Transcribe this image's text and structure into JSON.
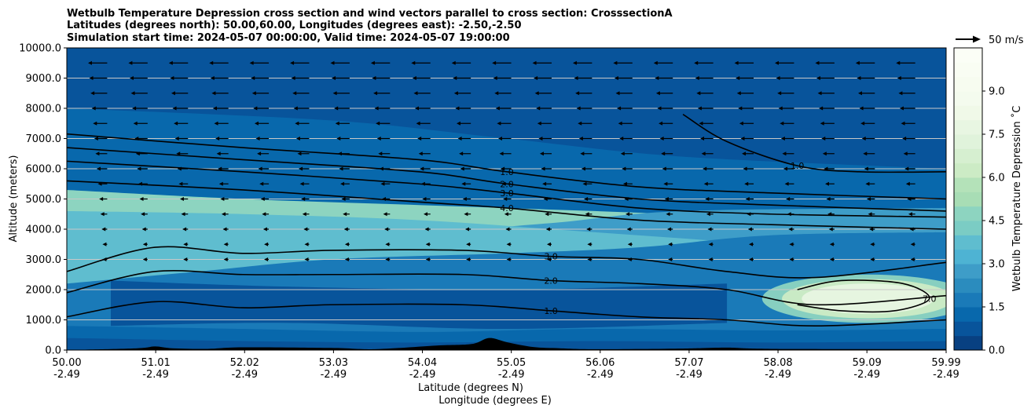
{
  "chart_data": {
    "type": "contourf",
    "title_lines": [
      "Wetbulb Temperature Depression cross section and wind vectors parallel to cross section: CrosssectionA",
      "Latitudes (degrees north): 50.00,60.00, Longitudes (degrees east): -2.50,-2.50",
      "Simulation start time: 2024-05-07 00:00:00, Valid time: 2024-05-07 19:00:00"
    ],
    "ylabel": "Altitude (meters)",
    "xlabel_lat": "Latitude (degrees N)",
    "xlabel_lon": "Longitude (degrees E)",
    "ylim": [
      0,
      10000
    ],
    "y_ticks": [
      {
        "value": 0,
        "label": "0.0"
      },
      {
        "value": 1000,
        "label": "1000.0"
      },
      {
        "value": 2000,
        "label": "2000.0"
      },
      {
        "value": 3000,
        "label": "3000.0"
      },
      {
        "value": 4000,
        "label": "4000.0"
      },
      {
        "value": 5000,
        "label": "5000.0"
      },
      {
        "value": 6000,
        "label": "6000.0"
      },
      {
        "value": 7000,
        "label": "7000.0"
      },
      {
        "value": 8000,
        "label": "8000.0"
      },
      {
        "value": 9000,
        "label": "9000.0"
      },
      {
        "value": 10000,
        "label": "10000.0"
      }
    ],
    "xlim": [
      50.0,
      59.99
    ],
    "x_ticks": [
      {
        "value": 50.0,
        "lat": "50.00",
        "lon": "-2.49"
      },
      {
        "value": 51.01,
        "lat": "51.01",
        "lon": "-2.49"
      },
      {
        "value": 52.02,
        "lat": "52.02",
        "lon": "-2.49"
      },
      {
        "value": 53.03,
        "lat": "53.03",
        "lon": "-2.49"
      },
      {
        "value": 54.04,
        "lat": "54.04",
        "lon": "-2.49"
      },
      {
        "value": 55.05,
        "lat": "55.05",
        "lon": "-2.49"
      },
      {
        "value": 56.06,
        "lat": "56.06",
        "lon": "-2.49"
      },
      {
        "value": 57.07,
        "lat": "57.07",
        "lon": "-2.49"
      },
      {
        "value": 58.08,
        "lat": "58.08",
        "lon": "-2.49"
      },
      {
        "value": 59.09,
        "lat": "59.09",
        "lon": "-2.49"
      },
      {
        "value": 59.99,
        "lat": "59.99",
        "lon": "-2.49"
      }
    ],
    "colorbar": {
      "label": "Wetbulb Temperature Depression ˚C",
      "range": [
        0,
        10.5
      ],
      "levels": [
        0,
        0.5,
        1.0,
        1.5,
        2.0,
        2.5,
        3.0,
        3.5,
        4.0,
        4.5,
        5.0,
        5.5,
        6.0,
        6.5,
        7.0,
        7.5,
        8.0,
        8.5,
        9.0,
        9.5,
        10.0,
        10.5
      ],
      "ticks": [
        {
          "value": 0.0,
          "label": "0.0"
        },
        {
          "value": 1.5,
          "label": "1.5"
        },
        {
          "value": 3.0,
          "label": "3.0"
        },
        {
          "value": 4.5,
          "label": "4.5"
        },
        {
          "value": 6.0,
          "label": "6.0"
        },
        {
          "value": 7.5,
          "label": "7.5"
        },
        {
          "value": 9.0,
          "label": "9.0"
        }
      ],
      "colors": [
        "#084081",
        "#08549b",
        "#0868ac",
        "#1a7ab8",
        "#2b8cbe",
        "#3e9dc8",
        "#4eb3d3",
        "#5fbdcf",
        "#7bccc4",
        "#8dd4c0",
        "#a8ddb5",
        "#b4e2b9",
        "#ccebc5",
        "#d6efd0",
        "#e0f3db",
        "#e8f6e2",
        "#f0f9e8",
        "#f4fbee",
        "#f7fcf0",
        "#f9fdf3",
        "#fbfef6"
      ]
    },
    "wind_reference": {
      "value": 50,
      "label": "50 m/s"
    },
    "bands": [
      {
        "level": 0.5,
        "heights": [
          [
            50.0,
            400
          ],
          [
            52.0,
            300
          ],
          [
            54.0,
            250
          ],
          [
            56.0,
            300
          ],
          [
            58.0,
            250
          ],
          [
            59.99,
            300
          ]
        ]
      },
      {
        "level": 1.0,
        "heights": [
          [
            50.0,
            800
          ],
          [
            52.0,
            700
          ],
          [
            54.0,
            600
          ],
          [
            56.0,
            700
          ],
          [
            58.0,
            650
          ],
          [
            59.99,
            700
          ]
        ]
      },
      {
        "level": 1.5,
        "heights": [
          [
            50.0,
            2200
          ],
          [
            51.5,
            2600
          ],
          [
            53.0,
            3000
          ],
          [
            55.0,
            3200
          ],
          [
            56.5,
            3400
          ],
          [
            58.0,
            3800
          ],
          [
            59.99,
            3900
          ]
        ]
      },
      {
        "level": 2.5,
        "heights": [
          [
            50.0,
            3200
          ],
          [
            52.0,
            3700
          ],
          [
            54.0,
            3900
          ],
          [
            55.5,
            4200
          ],
          [
            57.0,
            4600
          ],
          [
            59.99,
            4700
          ]
        ]
      },
      {
        "level": 3.5,
        "heights": [
          [
            50.0,
            4600
          ],
          [
            52.0,
            4500
          ],
          [
            54.0,
            4300
          ],
          [
            56.0,
            3900
          ],
          [
            58.0,
            3500
          ],
          [
            59.99,
            3200
          ]
        ]
      },
      {
        "level": 4.5,
        "heights": [
          [
            50.0,
            5300
          ],
          [
            52.0,
            5000
          ],
          [
            54.0,
            4800
          ],
          [
            56.0,
            4600
          ],
          [
            58.0,
            4400
          ],
          [
            59.99,
            4300
          ]
        ]
      },
      {
        "level": 1.0,
        "heights": [
          [
            50.0,
            8000
          ],
          [
            53.0,
            7600
          ],
          [
            55.0,
            7000
          ],
          [
            57.0,
            6400
          ],
          [
            59.99,
            6000
          ]
        ]
      },
      {
        "level": 0.5,
        "heights": [
          [
            50.0,
            10000
          ],
          [
            59.99,
            10000
          ]
        ]
      }
    ],
    "moist_layer": {
      "level": 0.5,
      "lower": [
        [
          50.5,
          800
        ],
        [
          52.5,
          900
        ],
        [
          55.0,
          700
        ],
        [
          57.5,
          900
        ]
      ],
      "upper": [
        [
          50.5,
          2300
        ],
        [
          52.5,
          2100
        ],
        [
          55.0,
          2000
        ],
        [
          57.5,
          2200
        ]
      ]
    },
    "dry_blob": {
      "level": 7.5,
      "center": [
        59.1,
        1700
      ],
      "rx_deg": 0.75,
      "ry_m": 500
    },
    "contours": [
      {
        "label": "1.0",
        "points": [
          [
            50.0,
            7150
          ],
          [
            52.0,
            6700
          ],
          [
            54.0,
            6300
          ],
          [
            55.0,
            5900
          ],
          [
            56.5,
            5400
          ],
          [
            58.0,
            5200
          ],
          [
            59.99,
            5000
          ]
        ]
      },
      {
        "label": "2.0",
        "points": [
          [
            50.0,
            6700
          ],
          [
            52.0,
            6300
          ],
          [
            54.0,
            5900
          ],
          [
            55.0,
            5500
          ],
          [
            56.5,
            5000
          ],
          [
            58.0,
            4800
          ],
          [
            59.99,
            4600
          ]
        ]
      },
      {
        "label": "3.0",
        "points": [
          [
            50.0,
            6250
          ],
          [
            52.0,
            5900
          ],
          [
            54.0,
            5500
          ],
          [
            55.0,
            5200
          ],
          [
            56.5,
            4700
          ],
          [
            58.0,
            4500
          ],
          [
            59.99,
            4400
          ]
        ]
      },
      {
        "label": "4.0",
        "points": [
          [
            50.0,
            5600
          ],
          [
            52.0,
            5300
          ],
          [
            54.0,
            4900
          ],
          [
            55.0,
            4700
          ],
          [
            56.5,
            4300
          ],
          [
            58.0,
            4150
          ],
          [
            59.99,
            4000
          ]
        ]
      },
      {
        "label": "3.0",
        "points": [
          [
            50.0,
            2600
          ],
          [
            51.0,
            3400
          ],
          [
            52.0,
            3200
          ],
          [
            53.0,
            3300
          ],
          [
            54.5,
            3300
          ],
          [
            55.5,
            3100
          ],
          [
            56.5,
            3000
          ],
          [
            57.5,
            2600
          ],
          [
            58.5,
            2400
          ],
          [
            59.99,
            2900
          ]
        ]
      },
      {
        "label": "2.0",
        "points": [
          [
            50.0,
            1900
          ],
          [
            51.0,
            2600
          ],
          [
            52.0,
            2500
          ],
          [
            53.0,
            2500
          ],
          [
            54.5,
            2500
          ],
          [
            55.5,
            2300
          ],
          [
            56.5,
            2200
          ],
          [
            57.5,
            2000
          ],
          [
            58.5,
            1500
          ],
          [
            59.99,
            1800
          ]
        ]
      },
      {
        "label": "1.0",
        "points": [
          [
            50.0,
            1100
          ],
          [
            51.0,
            1600
          ],
          [
            52.0,
            1400
          ],
          [
            53.0,
            1500
          ],
          [
            54.5,
            1500
          ],
          [
            55.5,
            1300
          ],
          [
            56.5,
            1100
          ],
          [
            57.5,
            1000
          ],
          [
            58.5,
            800
          ],
          [
            59.99,
            1000
          ]
        ]
      },
      {
        "label": "1.0",
        "points": [
          [
            57.0,
            7800
          ],
          [
            57.5,
            6900
          ],
          [
            58.3,
            6100
          ],
          [
            59.0,
            5900
          ],
          [
            59.99,
            5900
          ]
        ]
      },
      {
        "label": "7.0",
        "points": [
          [
            58.3,
            2000
          ],
          [
            58.8,
            2300
          ],
          [
            59.5,
            2200
          ],
          [
            59.8,
            1700
          ],
          [
            59.4,
            1300
          ],
          [
            58.8,
            1300
          ],
          [
            58.3,
            1500
          ]
        ]
      }
    ],
    "contour_labels_extra": [
      "0.0",
      "2.0",
      "5.0",
      "6.0",
      "1.0"
    ]
  }
}
